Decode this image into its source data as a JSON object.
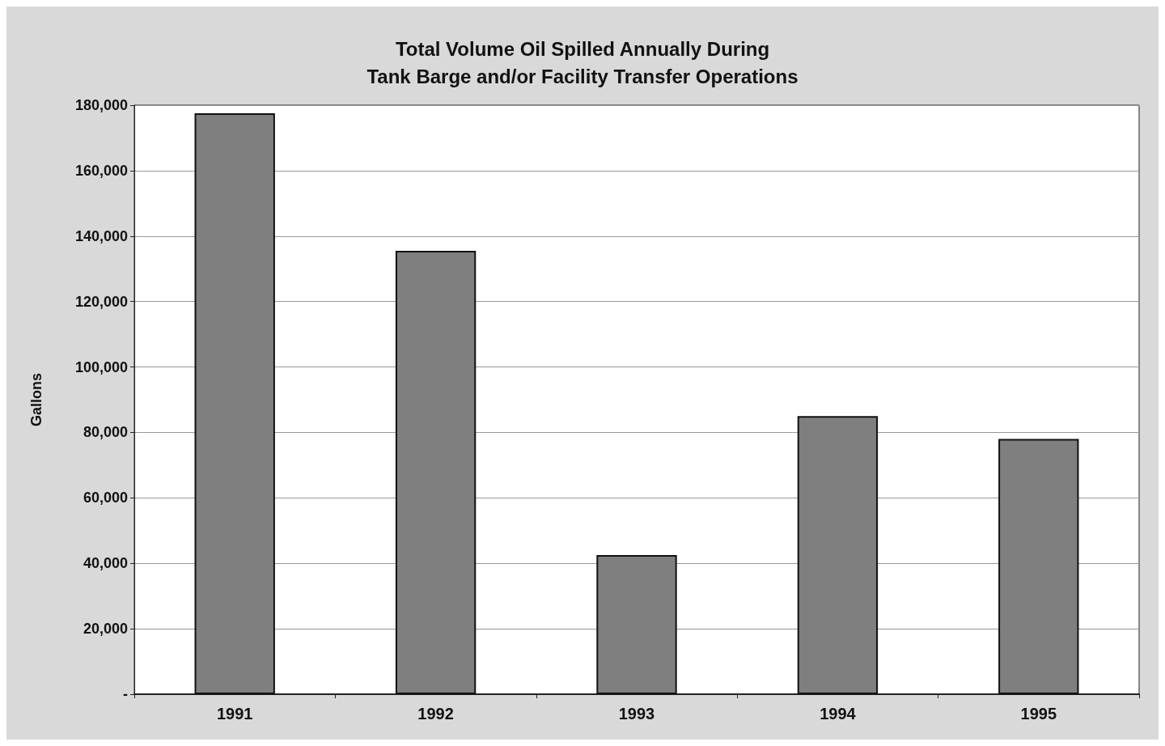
{
  "chart_data": {
    "type": "bar",
    "title": "Total Volume Oil Spilled Annually During\nTank Barge and/or Facility Transfer Operations",
    "ylabel": "Gallons",
    "categories": [
      "1991",
      "1992",
      "1993",
      "1994",
      "1995"
    ],
    "values": [
      177500,
      135500,
      42500,
      85000,
      78000
    ],
    "color": "#7f7f7f",
    "ylim": [
      0,
      180000
    ],
    "yticks": [
      {
        "value": 0,
        "label": "-"
      },
      {
        "value": 20000,
        "label": "20,000"
      },
      {
        "value": 40000,
        "label": "40,000"
      },
      {
        "value": 60000,
        "label": "60,000"
      },
      {
        "value": 80000,
        "label": "80,000"
      },
      {
        "value": 100000,
        "label": "100,000"
      },
      {
        "value": 120000,
        "label": "120,000"
      },
      {
        "value": 140000,
        "label": "140,000"
      },
      {
        "value": 160000,
        "label": "160,000"
      },
      {
        "value": 180000,
        "label": "180,000"
      }
    ],
    "grid": "y"
  }
}
